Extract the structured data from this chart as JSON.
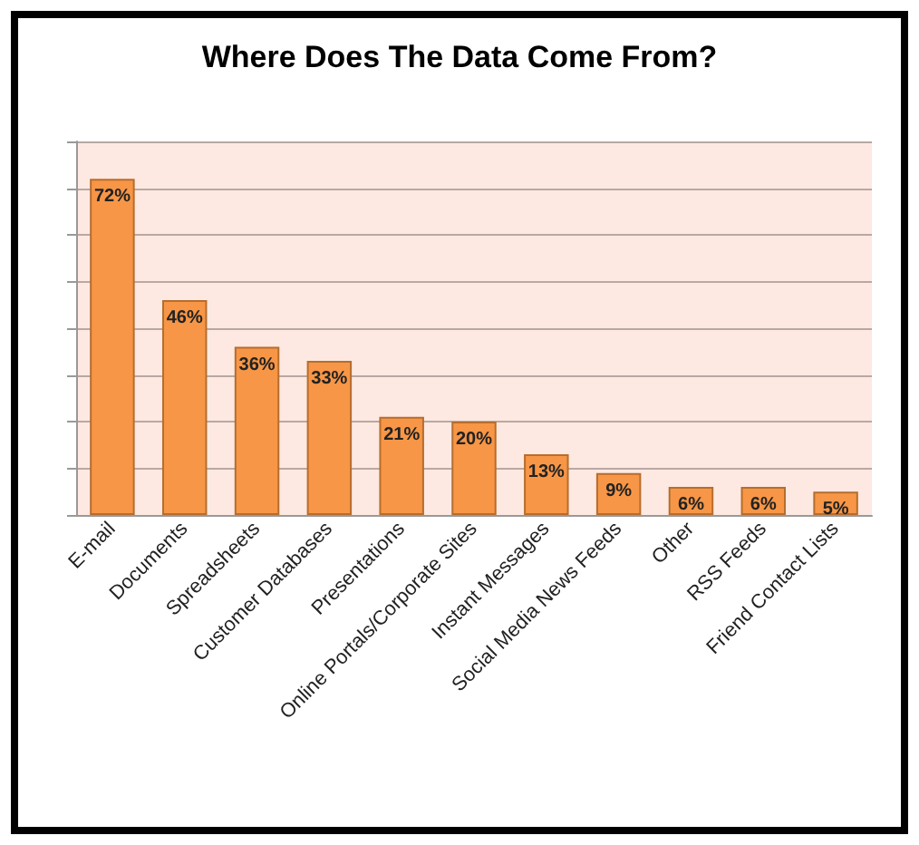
{
  "chart_data": {
    "type": "bar",
    "title": "Where Does The Data Come From?",
    "categories": [
      "E-mail",
      "Documents",
      "Spreadsheets",
      "Customer Databases",
      "Presentations",
      "Online Portals/Corporate Sites",
      "Instant Messages",
      "Social Media News Feeds",
      "Other",
      "RSS Feeds",
      "Friend Contact Lists"
    ],
    "values": [
      72,
      46,
      36,
      33,
      21,
      20,
      13,
      9,
      6,
      6,
      5
    ],
    "value_labels": [
      "72%",
      "46%",
      "36%",
      "33%",
      "21%",
      "20%",
      "13%",
      "9%",
      "6%",
      "6%",
      "5%"
    ],
    "color": "#f79646",
    "ylim": [
      0,
      80
    ],
    "yticks": [
      {
        "value": 0,
        "label": null
      },
      {
        "value": 10,
        "label": null
      },
      {
        "value": 20,
        "label": null
      },
      {
        "value": 30,
        "label": null
      },
      {
        "value": 40,
        "label": null
      },
      {
        "value": 50,
        "label": null
      },
      {
        "value": 60,
        "label": null
      },
      {
        "value": 70,
        "label": null
      },
      {
        "value": 80,
        "label": null
      }
    ],
    "tick_labels": "x",
    "grid": "y"
  }
}
